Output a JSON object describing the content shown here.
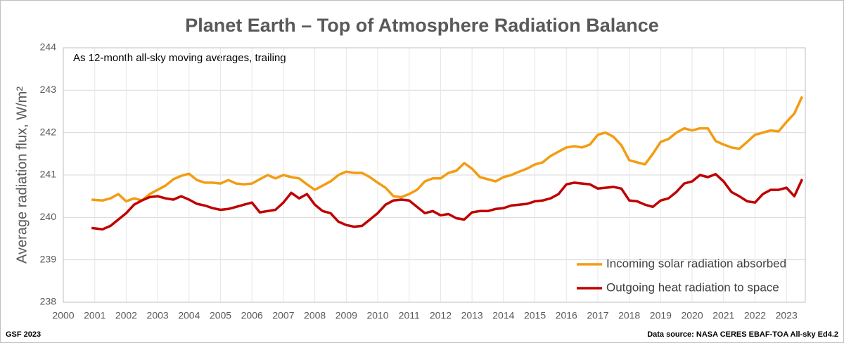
{
  "chart_data": {
    "type": "line",
    "title": "Planet Earth – Top of Atmosphere Radiation Balance",
    "annotation": "As 12-month all-sky moving averages, trailing",
    "y_label": "Average radiation flux, W/m²",
    "footer_left": "GSF 2023",
    "footer_right": "Data source: NASA CERES EBAF-TOA All-sky Ed4.2",
    "xlim": [
      2000,
      2023.6
    ],
    "ylim": [
      238,
      244
    ],
    "xticks": [
      2000,
      2001,
      2002,
      2003,
      2004,
      2005,
      2006,
      2007,
      2008,
      2009,
      2010,
      2011,
      2012,
      2013,
      2014,
      2015,
      2016,
      2017,
      2018,
      2019,
      2020,
      2021,
      2022,
      2023
    ],
    "yticks": [
      238,
      239,
      240,
      241,
      242,
      243,
      244
    ],
    "grid": true,
    "legend": "lower right",
    "x": [
      2000.9,
      2001.25,
      2001.5,
      2001.75,
      2002,
      2002.25,
      2002.5,
      2002.75,
      2003,
      2003.25,
      2003.5,
      2003.75,
      2004,
      2004.25,
      2004.5,
      2004.75,
      2005,
      2005.25,
      2005.5,
      2005.75,
      2006,
      2006.25,
      2006.5,
      2006.75,
      2007,
      2007.25,
      2007.5,
      2007.75,
      2008,
      2008.25,
      2008.5,
      2008.75,
      2009,
      2009.25,
      2009.5,
      2009.75,
      2010,
      2010.25,
      2010.5,
      2010.75,
      2011,
      2011.25,
      2011.5,
      2011.75,
      2012,
      2012.25,
      2012.5,
      2012.75,
      2013,
      2013.25,
      2013.5,
      2013.75,
      2014,
      2014.25,
      2014.5,
      2014.75,
      2015,
      2015.25,
      2015.5,
      2015.75,
      2016,
      2016.25,
      2016.5,
      2016.75,
      2017,
      2017.25,
      2017.5,
      2017.75,
      2018,
      2018.25,
      2018.5,
      2018.75,
      2019,
      2019.25,
      2019.5,
      2019.75,
      2020,
      2020.25,
      2020.5,
      2020.75,
      2021,
      2021.25,
      2021.5,
      2021.75,
      2022,
      2022.25,
      2022.5,
      2022.75,
      2023,
      2023.25,
      2023.5
    ],
    "series": [
      {
        "name": "Incoming solar radiation absorbed",
        "color": "#f39c12",
        "values": [
          240.42,
          240.4,
          240.45,
          240.55,
          240.38,
          240.45,
          240.4,
          240.55,
          240.65,
          240.75,
          240.9,
          240.98,
          241.03,
          240.88,
          240.82,
          240.82,
          240.8,
          240.88,
          240.8,
          240.78,
          240.8,
          240.9,
          241.0,
          240.92,
          241.0,
          240.95,
          240.92,
          240.78,
          240.65,
          240.75,
          240.85,
          241.0,
          241.08,
          241.05,
          241.05,
          240.95,
          240.82,
          240.7,
          240.5,
          240.48,
          240.55,
          240.65,
          240.85,
          240.92,
          240.92,
          241.05,
          241.1,
          241.28,
          241.15,
          240.95,
          240.9,
          240.85,
          240.95,
          241.0,
          241.08,
          241.15,
          241.25,
          241.3,
          241.45,
          241.55,
          241.65,
          241.68,
          241.65,
          241.72,
          241.95,
          242.0,
          241.9,
          241.7,
          241.35,
          241.3,
          241.25,
          241.5,
          241.78,
          241.85,
          242.0,
          242.1,
          242.05,
          242.1,
          242.1,
          241.8,
          241.72,
          241.65,
          241.62,
          241.78,
          241.95,
          242.0,
          242.05,
          242.03,
          242.25,
          242.45,
          242.85
        ]
      },
      {
        "name": "Outgoing heat radiation to space",
        "color": "#c00000",
        "values": [
          239.75,
          239.72,
          239.8,
          239.95,
          240.1,
          240.3,
          240.4,
          240.48,
          240.5,
          240.45,
          240.42,
          240.5,
          240.42,
          240.32,
          240.28,
          240.22,
          240.18,
          240.2,
          240.25,
          240.3,
          240.35,
          240.12,
          240.15,
          240.18,
          240.35,
          240.58,
          240.45,
          240.55,
          240.3,
          240.15,
          240.1,
          239.9,
          239.82,
          239.78,
          239.8,
          239.95,
          240.1,
          240.3,
          240.4,
          240.42,
          240.4,
          240.25,
          240.1,
          240.15,
          240.05,
          240.08,
          239.98,
          239.95,
          240.12,
          240.15,
          240.15,
          240.2,
          240.22,
          240.28,
          240.3,
          240.32,
          240.38,
          240.4,
          240.45,
          240.55,
          240.78,
          240.82,
          240.8,
          240.78,
          240.68,
          240.7,
          240.72,
          240.68,
          240.4,
          240.38,
          240.3,
          240.25,
          240.4,
          240.45,
          240.6,
          240.8,
          240.85,
          241.0,
          240.95,
          241.02,
          240.85,
          240.6,
          240.5,
          240.38,
          240.35,
          240.55,
          240.65,
          240.65,
          240.7,
          240.5,
          240.9
        ]
      }
    ]
  }
}
